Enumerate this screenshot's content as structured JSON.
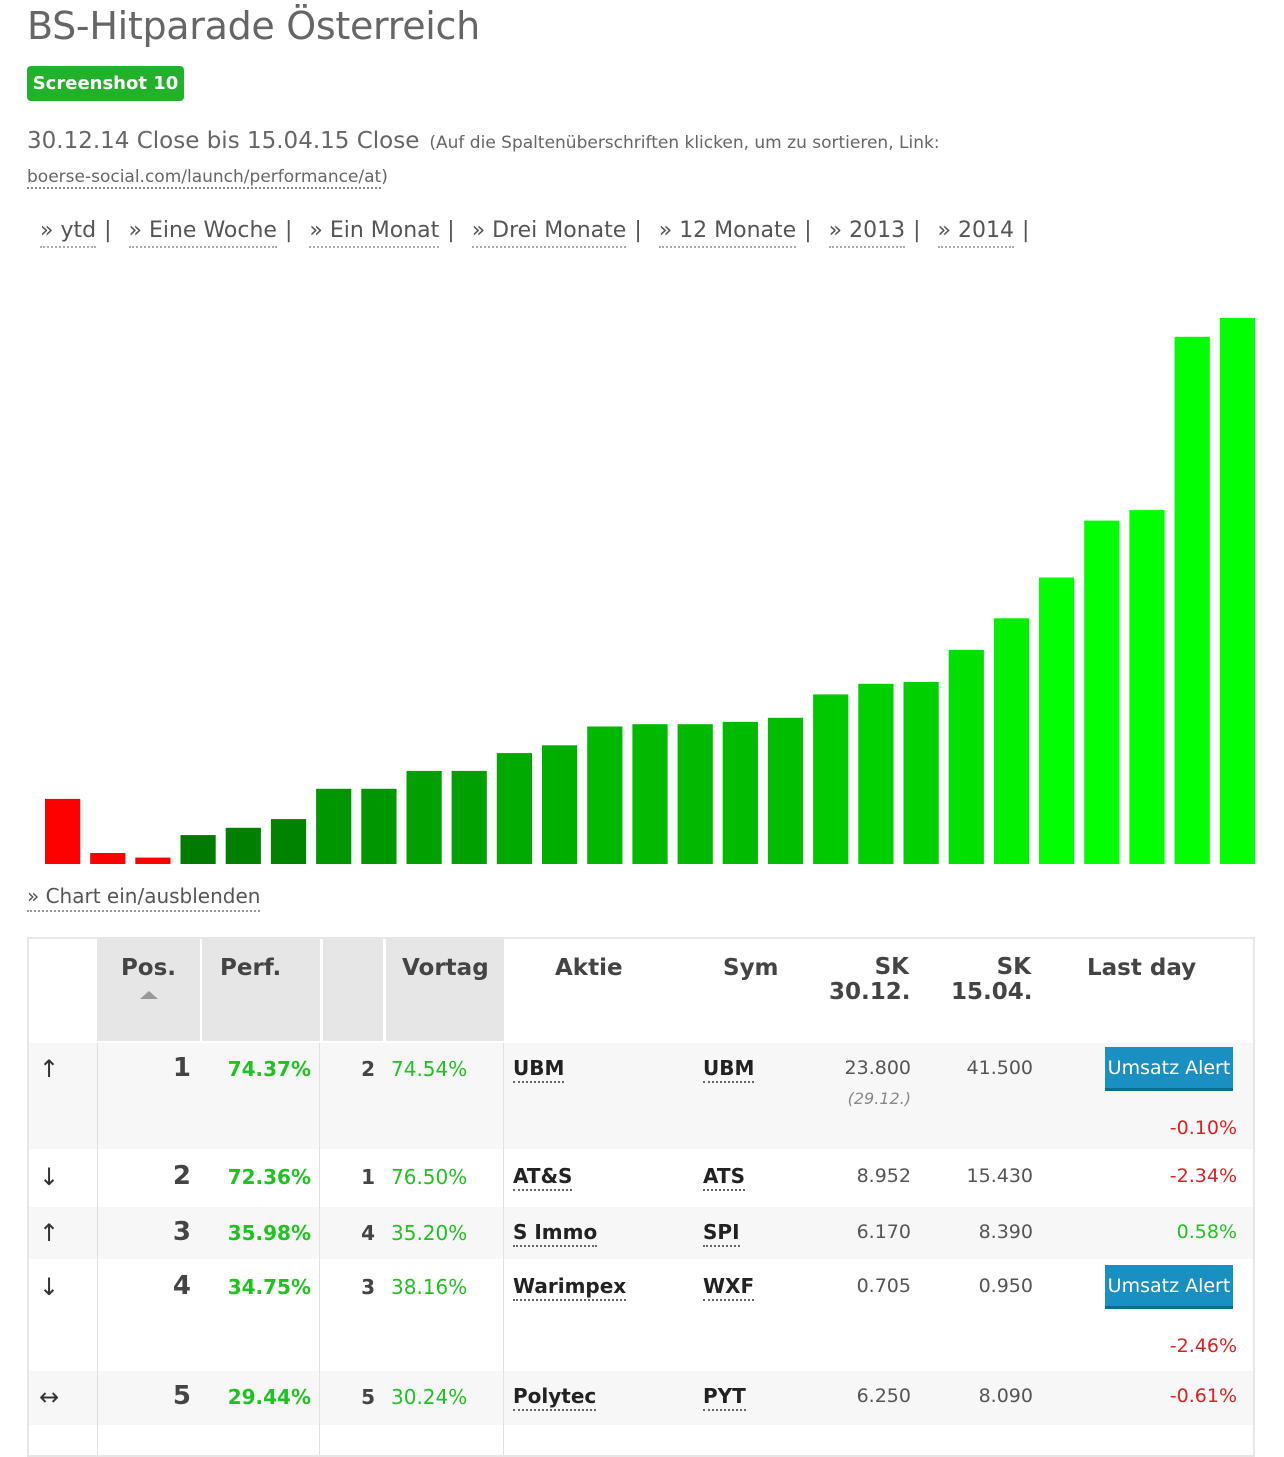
{
  "page": {
    "title": "BS-Hitparade Österreich",
    "badge": "Screenshot 10",
    "range_main": "30.12.14 Close bis 15.04.15 Close",
    "range_hint": "(Auf die Spaltenüberschriften klicken, um zu sortieren, Link: ",
    "range_link": "boerse-social.com/launch/performance/at",
    "range_close": ")",
    "chart_toggle": "» Chart ein/ausblenden"
  },
  "periods": [
    "» ytd",
    "» Eine Woche",
    "» Ein Monat",
    "» Drei Monate",
    "» 12 Monate",
    "» 2013",
    "» 2014"
  ],
  "period_separator": "|",
  "chart_data": {
    "type": "bar",
    "values": [
      -14.2,
      -2.4,
      -1.4,
      6.3,
      7.9,
      9.8,
      16.4,
      16.4,
      20.3,
      20.3,
      24.2,
      25.9,
      30.0,
      30.5,
      30.5,
      31.0,
      31.9,
      37.0,
      39.3,
      39.7,
      46.7,
      53.6,
      62.5,
      74.9,
      77.2,
      115.0,
      119.1
    ],
    "colors_negative": "#ff0000",
    "colors_positive_scale": [
      "#006600",
      "#00ff00"
    ],
    "grid": false,
    "legend": "none"
  },
  "table": {
    "headers": {
      "pos": "Pos.",
      "perf": "Perf.",
      "vortag": "Vortag",
      "aktie": "Aktie",
      "sym": "Sym",
      "sk1_a": "SK",
      "sk1_b": "30.12.",
      "sk2_a": "SK",
      "sk2_b": "15.04.",
      "last": "Last day"
    },
    "rows": [
      {
        "trend": "↑",
        "pos": "1",
        "perf": "74.37%",
        "prev_pos": "2",
        "prev_perf": "74.54%",
        "aktie": "UBM",
        "sym": "UBM",
        "sk1": "23.800",
        "sk1_note": "(29.12.)",
        "sk2": "41.500",
        "button": "Umsatz Alert",
        "last": "-0.10%"
      },
      {
        "trend": "↓",
        "pos": "2",
        "perf": "72.36%",
        "prev_pos": "1",
        "prev_perf": "76.50%",
        "aktie": "AT&S",
        "sym": "ATS",
        "sk1": "8.952",
        "sk2": "15.430",
        "last": "-2.34%"
      },
      {
        "trend": "↑",
        "pos": "3",
        "perf": "35.98%",
        "prev_pos": "4",
        "prev_perf": "35.20%",
        "aktie": "S Immo",
        "sym": "SPI",
        "sk1": "6.170",
        "sk2": "8.390",
        "last": "0.58%"
      },
      {
        "trend": "↓",
        "pos": "4",
        "perf": "34.75%",
        "prev_pos": "3",
        "prev_perf": "38.16%",
        "aktie": "Warimpex",
        "sym": "WXF",
        "sk1": "0.705",
        "sk2": "0.950",
        "button": "Umsatz Alert",
        "last": "-2.46%"
      },
      {
        "trend": "↔",
        "pos": "5",
        "perf": "29.44%",
        "prev_pos": "5",
        "prev_perf": "30.24%",
        "aktie": "Polytec",
        "sym": "PYT",
        "sk1": "6.250",
        "sk2": "8.090",
        "last": "-0.61%"
      }
    ]
  },
  "colors": {
    "badge": "#22b22a",
    "positive": "#1fc21f",
    "negative": "#e02020",
    "button": "#1a8fc2"
  }
}
